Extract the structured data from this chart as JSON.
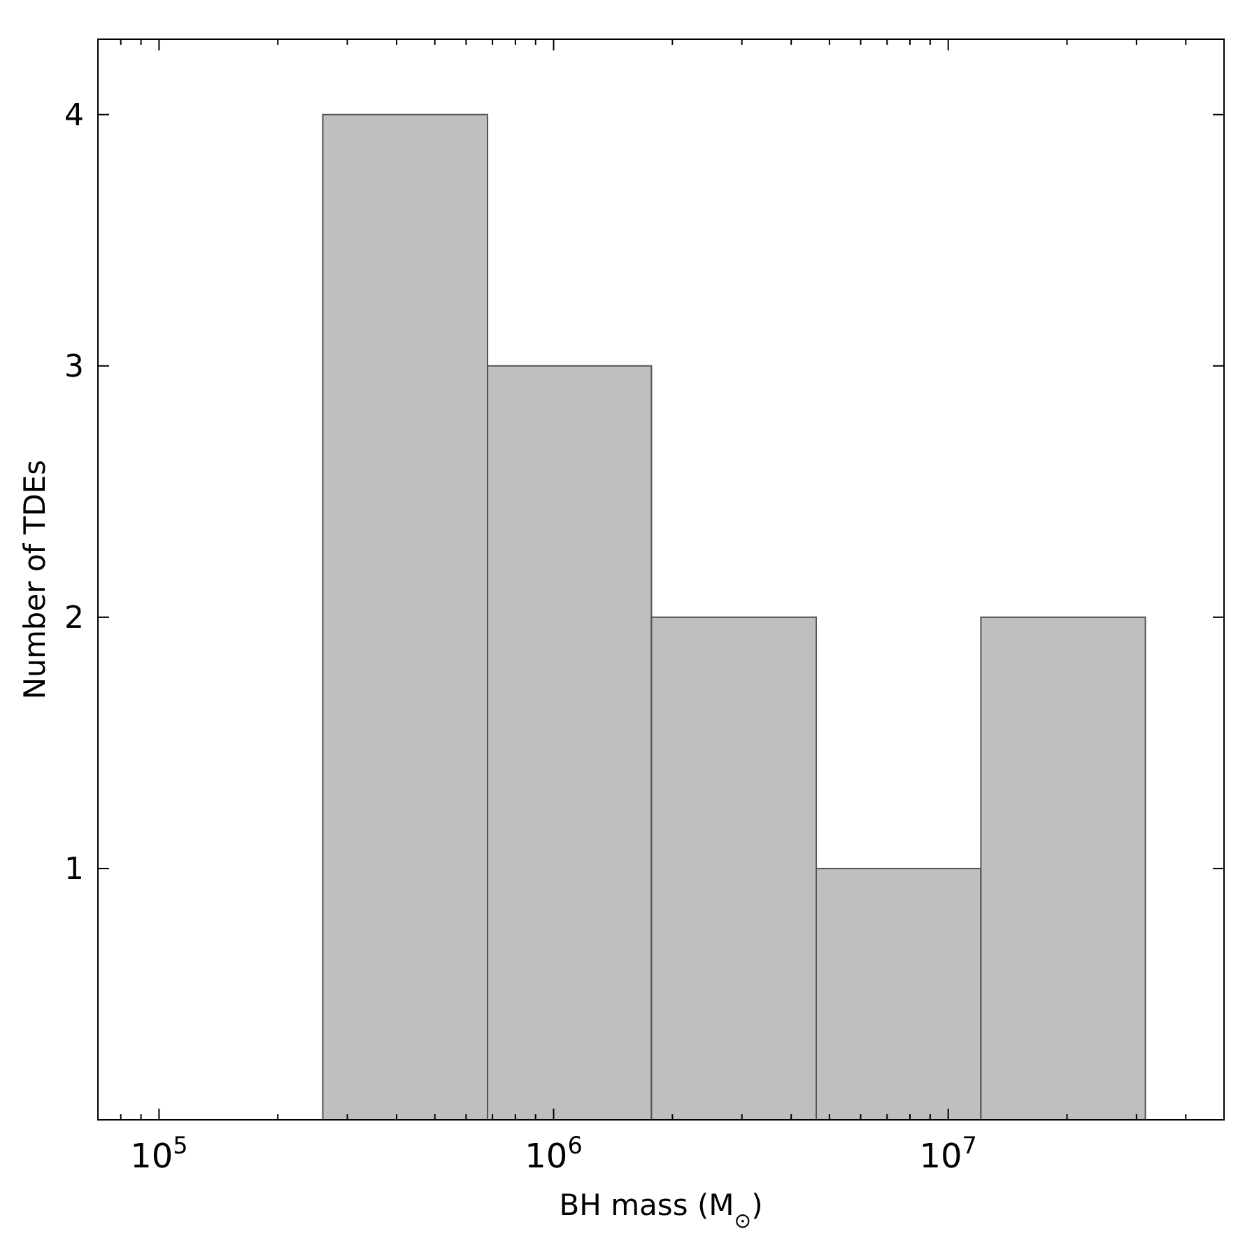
{
  "chart_data": {
    "type": "histogram",
    "xlabel": "BH mass (M$_{⊙}$)",
    "ylabel": "Number of TDEs",
    "log": "x",
    "bins": [
      260000,
      680000,
      1770000,
      4630000,
      12100000,
      31600000
    ],
    "values": [
      4,
      3,
      2,
      1,
      2
    ],
    "color": "#bfbfbf",
    "xlim": [
      70000,
      50000000
    ],
    "xticks": [
      {
        "value": 100000,
        "label": "10$^{5}$"
      },
      {
        "value": 1000000,
        "label": "10$^{6}$"
      },
      {
        "value": 10000000,
        "label": "10$^{7}$"
      }
    ],
    "ylim": [
      0,
      4.3
    ],
    "yticks": [
      1,
      2,
      3,
      4
    ],
    "grid": false
  }
}
